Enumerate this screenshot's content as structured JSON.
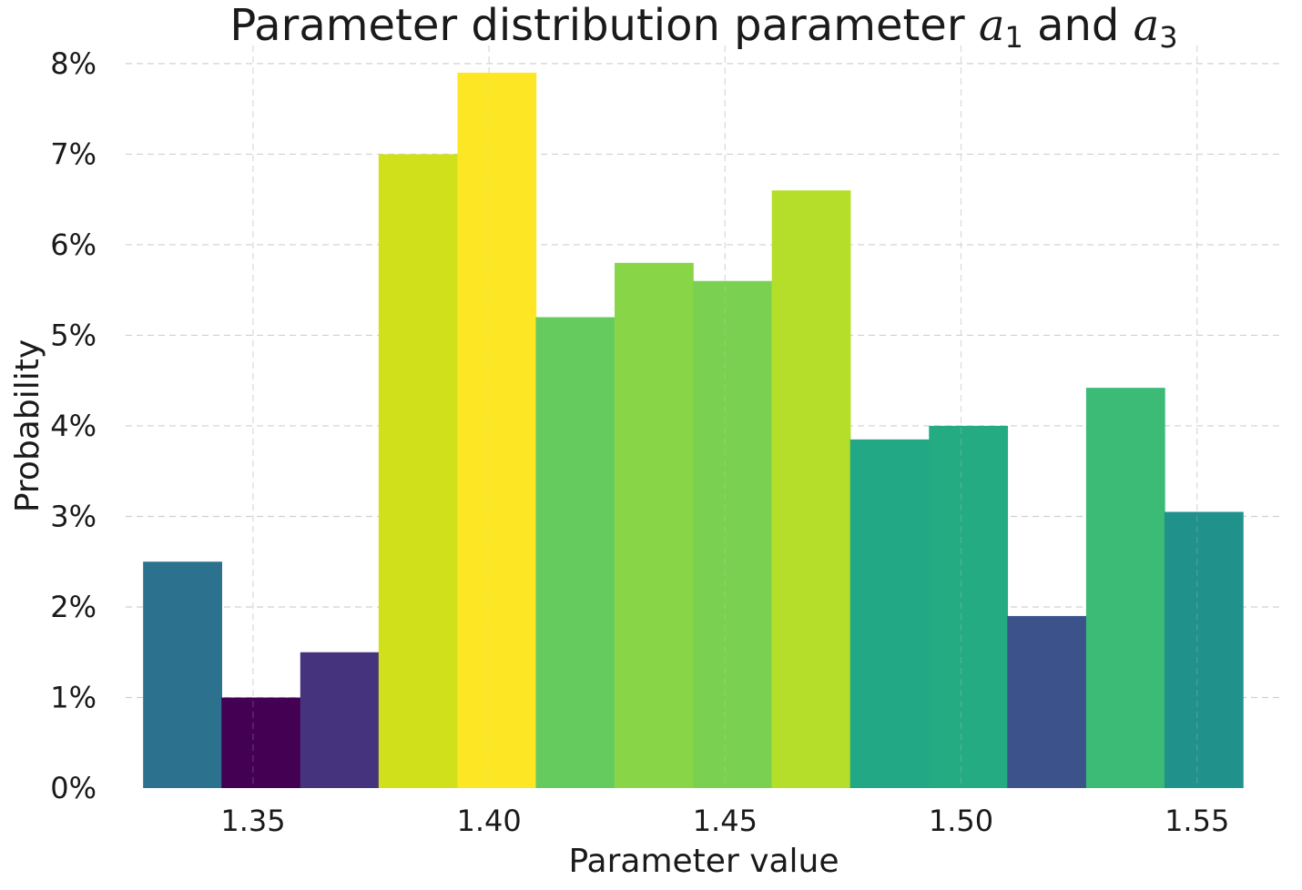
{
  "chart_data": {
    "type": "bar",
    "title": {
      "text": "Parameter distribution parameter ",
      "var1": "a",
      "sub1": "1",
      "joiner": " and ",
      "var2": "a",
      "sub2": "3"
    },
    "xlabel": "Parameter value",
    "ylabel": "Probability",
    "xlim": [
      1.323,
      1.568
    ],
    "ylim": [
      0,
      8.2
    ],
    "x_ticks": [
      1.35,
      1.4,
      1.45,
      1.5,
      1.55
    ],
    "x_tick_labels": [
      "1.35",
      "1.40",
      "1.45",
      "1.50",
      "1.55"
    ],
    "y_ticks": [
      0,
      1,
      2,
      3,
      4,
      5,
      6,
      7,
      8
    ],
    "y_tick_labels": [
      "0%",
      "1%",
      "2%",
      "3%",
      "4%",
      "5%",
      "6%",
      "7%",
      "8%"
    ],
    "grid": true,
    "bin_width": 0.01665,
    "bins": [
      {
        "start": 1.3267,
        "value": 2.5,
        "color": "#2c728e"
      },
      {
        "start": 1.3433,
        "value": 1.0,
        "color": "#440154"
      },
      {
        "start": 1.36,
        "value": 1.5,
        "color": "#46337e"
      },
      {
        "start": 1.3766,
        "value": 7.0,
        "color": "#d0e11c"
      },
      {
        "start": 1.3933,
        "value": 7.9,
        "color": "#fde725"
      },
      {
        "start": 1.4099,
        "value": 5.2,
        "color": "#65cb5e"
      },
      {
        "start": 1.4266,
        "value": 5.8,
        "color": "#89d548"
      },
      {
        "start": 1.4432,
        "value": 5.6,
        "color": "#7ad151"
      },
      {
        "start": 1.4599,
        "value": 6.6,
        "color": "#b5de2b"
      },
      {
        "start": 1.4765,
        "value": 3.85,
        "color": "#22a884"
      },
      {
        "start": 1.4932,
        "value": 4.0,
        "color": "#25ab82"
      },
      {
        "start": 1.5098,
        "value": 1.9,
        "color": "#3b528b"
      },
      {
        "start": 1.5265,
        "value": 4.42,
        "color": "#3bbb75"
      },
      {
        "start": 1.5431,
        "value": 3.05,
        "color": "#21918c"
      }
    ]
  }
}
